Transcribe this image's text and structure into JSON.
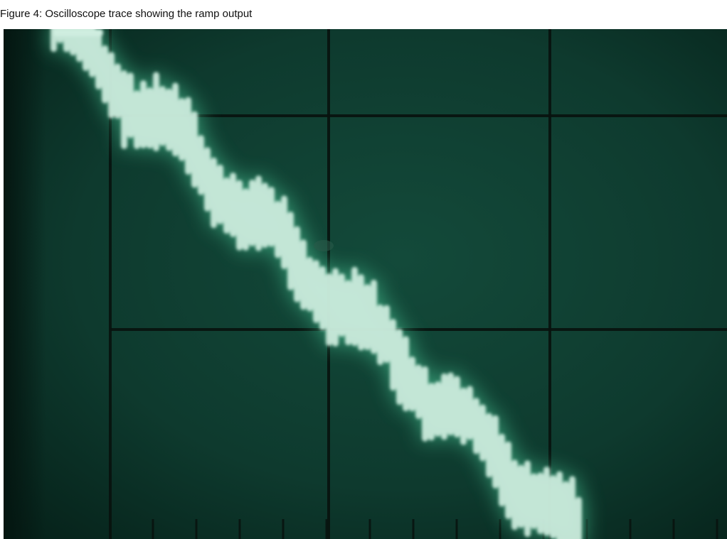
{
  "caption": {
    "text": "Figure 4: Oscilloscope trace showing the ramp output"
  },
  "screen": {
    "subject": "oscilloscope-screen-photo",
    "background_color": "#0e3a2e",
    "background_dark_color": "#051a14",
    "graticule_color": "#08120e",
    "trace_color": "#cfeee0",
    "trace_glow_color": "#4fd6a0",
    "graticule": {
      "major_divisions_x": 3,
      "major_divisions_y": 2
    },
    "trace": {
      "shape": "descending-ramp",
      "direction": "top-left to bottom-right"
    }
  }
}
